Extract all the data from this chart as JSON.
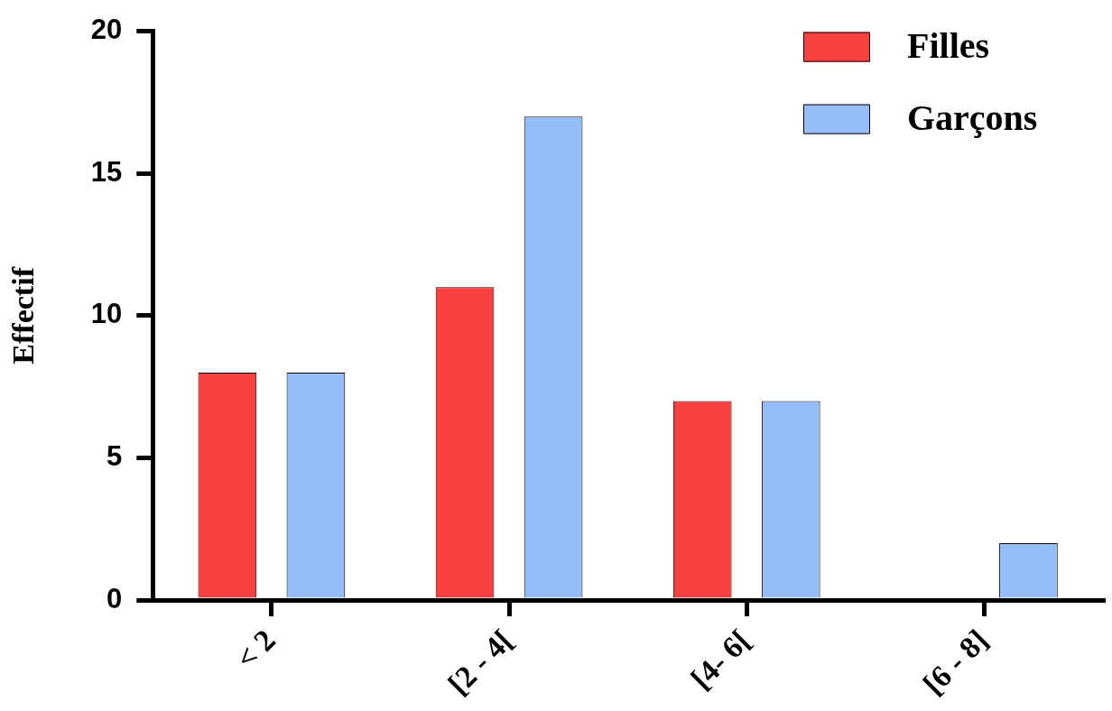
{
  "chart_data": {
    "type": "bar",
    "ylabel": "Effectif",
    "categories": [
      "< 2",
      "[2 - 4[",
      "[4- 6[",
      "[6 - 8]"
    ],
    "series": [
      {
        "name": "Filles",
        "color": "#f94040",
        "values": [
          8,
          11,
          7,
          0
        ]
      },
      {
        "name": "Garçons",
        "color": "#93bef7",
        "values": [
          8,
          17,
          7,
          2
        ]
      }
    ],
    "ylim": [
      0,
      20
    ],
    "yticks": [
      0,
      5,
      10,
      15,
      20
    ],
    "grid": false,
    "legend": "top right"
  }
}
